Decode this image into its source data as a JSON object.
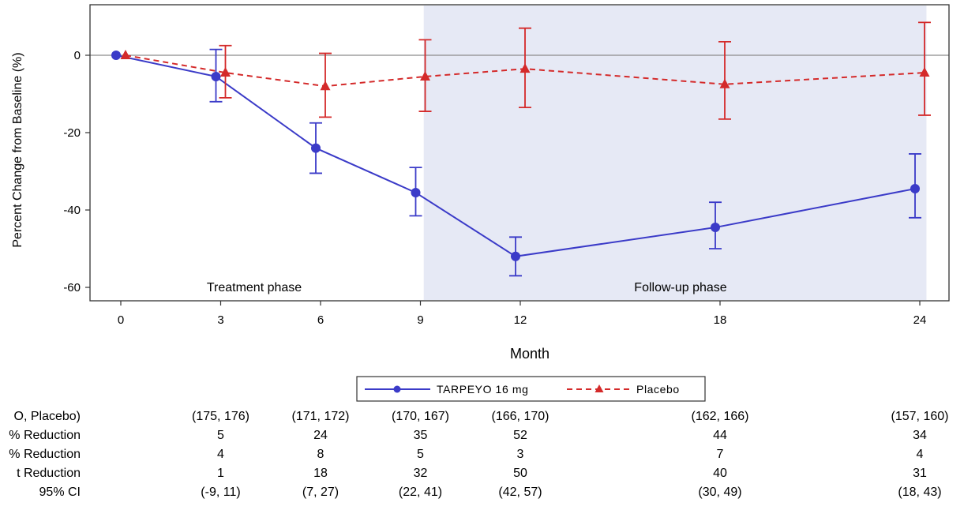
{
  "chart_data": {
    "type": "line",
    "xlabel": "Month",
    "ylabel": "Percent Change from Baseline (%)",
    "x": [
      0,
      3,
      6,
      9,
      12,
      18,
      24
    ],
    "x_tick_labels": [
      "0",
      "3",
      "6",
      "9",
      "12",
      "18",
      "24"
    ],
    "y_ticks": [
      0,
      -20,
      -40,
      -60
    ],
    "y_tick_labels": [
      "0",
      "-20",
      "-40",
      "-60"
    ],
    "ylim": [
      -63,
      13
    ],
    "reference_line_y": 0,
    "legend_position": "bottom-center",
    "shaded_region": {
      "x_start": 9.1,
      "x_end": 24.2,
      "label": "Follow-up phase",
      "color": "#e6e9f5"
    },
    "unshaded_label": "Treatment phase",
    "series": [
      {
        "name": "TARPEYO 16 mg",
        "color": "#3b3bc8",
        "marker": "circle",
        "line_style": "solid",
        "y": [
          0,
          -5.5,
          -24,
          -35.5,
          -52,
          -44.5,
          -34.5
        ],
        "error_low": [
          null,
          -12,
          -30.5,
          -41.5,
          -57,
          -50,
          -42
        ],
        "error_high": [
          null,
          1.5,
          -17.5,
          -29,
          -47,
          -38,
          -25.5
        ]
      },
      {
        "name": "Placebo",
        "color": "#d42a2a",
        "marker": "triangle",
        "line_style": "dashed",
        "y": [
          0,
          -4.5,
          -8,
          -5.5,
          -3.5,
          -7.5,
          -4.5
        ],
        "error_low": [
          null,
          -11,
          -16,
          -14.5,
          -13.5,
          -16.5,
          -15.5
        ],
        "error_high": [
          null,
          2.5,
          0.5,
          4,
          7,
          3.5,
          8.5
        ]
      }
    ]
  },
  "table": {
    "row_labels": [
      "O, Placebo)",
      "% Reduction",
      "% Reduction",
      "t Reduction",
      "95% CI"
    ],
    "columns": [
      {
        "x": 3,
        "cells": [
          "(175, 176)",
          "5",
          "4",
          "1",
          "(-9, 11)"
        ]
      },
      {
        "x": 6,
        "cells": [
          "(171, 172)",
          "24",
          "8",
          "18",
          "(7, 27)"
        ]
      },
      {
        "x": 9,
        "cells": [
          "(170, 167)",
          "35",
          "5",
          "32",
          "(22, 41)"
        ]
      },
      {
        "x": 12,
        "cells": [
          "(166, 170)",
          "52",
          "3",
          "50",
          "(42, 57)"
        ]
      },
      {
        "x": 18,
        "cells": [
          "(162, 166)",
          "44",
          "7",
          "40",
          "(30, 49)"
        ]
      },
      {
        "x": 24,
        "cells": [
          "(157, 160)",
          "34",
          "4",
          "31",
          "(18, 43)"
        ]
      }
    ]
  }
}
